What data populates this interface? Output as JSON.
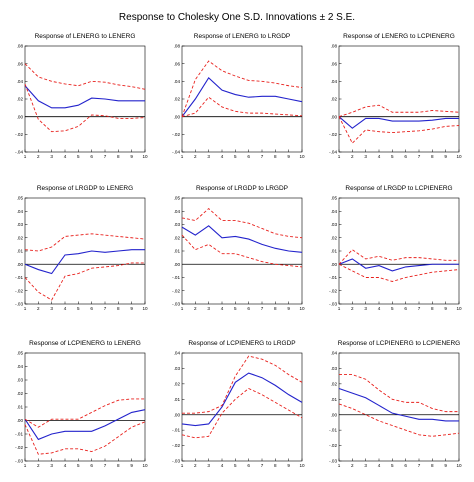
{
  "title": "Response to Cholesky One S.D. Innovations ± 2 S.E.",
  "colors": {
    "response": "#2323cc",
    "band": "#e8201c",
    "zero": "#000000",
    "frame": "#000000"
  },
  "chart_data": [
    {
      "type": "line",
      "title": "Response of LENERG to LENERG",
      "x": [
        1,
        2,
        3,
        4,
        5,
        6,
        7,
        8,
        9,
        10
      ],
      "ylim": [
        -0.04,
        0.08
      ],
      "y_ticks": [
        "-.04",
        "-.02",
        ".00",
        ".02",
        ".04",
        ".06",
        ".08"
      ],
      "series": [
        {
          "role": "response",
          "values": [
            0.035,
            0.018,
            0.01,
            0.01,
            0.013,
            0.021,
            0.02,
            0.018,
            0.018,
            0.018
          ]
        },
        {
          "role": "upper",
          "values": [
            0.06,
            0.045,
            0.04,
            0.037,
            0.035,
            0.04,
            0.039,
            0.036,
            0.034,
            0.031
          ]
        },
        {
          "role": "lower",
          "values": [
            0.037,
            -0.003,
            -0.017,
            -0.016,
            -0.011,
            0.002,
            0.001,
            -0.002,
            -0.002,
            -0.001
          ]
        }
      ]
    },
    {
      "type": "line",
      "title": "Response of LENERG to LRGDP",
      "x": [
        1,
        2,
        3,
        4,
        5,
        6,
        7,
        8,
        9,
        10
      ],
      "ylim": [
        -0.04,
        0.08
      ],
      "y_ticks": [
        "-.04",
        "-.02",
        ".00",
        ".02",
        ".04",
        ".06",
        ".08"
      ],
      "series": [
        {
          "role": "response",
          "values": [
            0.0,
            0.02,
            0.044,
            0.03,
            0.025,
            0.022,
            0.023,
            0.023,
            0.02,
            0.017
          ]
        },
        {
          "role": "upper",
          "values": [
            0.0,
            0.042,
            0.063,
            0.052,
            0.046,
            0.041,
            0.04,
            0.038,
            0.035,
            0.033
          ]
        },
        {
          "role": "lower",
          "values": [
            0.0,
            0.004,
            0.022,
            0.011,
            0.006,
            0.004,
            0.004,
            0.003,
            0.002,
            0.001
          ]
        }
      ]
    },
    {
      "type": "line",
      "title": "Response of LENERG to LCPIENERG",
      "x": [
        1,
        2,
        3,
        4,
        5,
        6,
        7,
        8,
        9,
        10
      ],
      "ylim": [
        -0.04,
        0.08
      ],
      "y_ticks": [
        "-.04",
        "-.02",
        ".00",
        ".02",
        ".04",
        ".06",
        ".08"
      ],
      "series": [
        {
          "role": "response",
          "values": [
            0.0,
            -0.013,
            -0.002,
            -0.002,
            -0.005,
            -0.005,
            -0.005,
            -0.004,
            -0.002,
            -0.002
          ]
        },
        {
          "role": "upper",
          "values": [
            0.0,
            0.005,
            0.011,
            0.013,
            0.005,
            0.005,
            0.005,
            0.007,
            0.006,
            0.005
          ]
        },
        {
          "role": "lower",
          "values": [
            0.0,
            -0.03,
            -0.015,
            -0.017,
            -0.018,
            -0.017,
            -0.016,
            -0.014,
            -0.011,
            -0.01
          ]
        }
      ]
    },
    {
      "type": "line",
      "title": "Response of LRGDP to LENERG",
      "x": [
        1,
        2,
        3,
        4,
        5,
        6,
        7,
        8,
        9,
        10
      ],
      "ylim": [
        -0.03,
        0.05
      ],
      "y_ticks": [
        "-.03",
        "-.02",
        "-.01",
        ".00",
        ".01",
        ".02",
        ".03",
        ".04",
        ".05"
      ],
      "series": [
        {
          "role": "response",
          "values": [
            0.0,
            -0.004,
            -0.007,
            0.007,
            0.008,
            0.01,
            0.009,
            0.01,
            0.011,
            0.011
          ]
        },
        {
          "role": "upper",
          "values": [
            0.011,
            0.01,
            0.013,
            0.021,
            0.022,
            0.023,
            0.022,
            0.021,
            0.02,
            0.019
          ]
        },
        {
          "role": "lower",
          "values": [
            -0.01,
            -0.021,
            -0.027,
            -0.009,
            -0.007,
            -0.003,
            -0.002,
            -0.001,
            0.001,
            0.001
          ]
        }
      ]
    },
    {
      "type": "line",
      "title": "Response of LRGDP to LRGDP",
      "x": [
        1,
        2,
        3,
        4,
        5,
        6,
        7,
        8,
        9,
        10
      ],
      "ylim": [
        -0.03,
        0.05
      ],
      "y_ticks": [
        "-.03",
        "-.02",
        "-.01",
        ".00",
        ".01",
        ".02",
        ".03",
        ".04",
        ".05"
      ],
      "series": [
        {
          "role": "response",
          "values": [
            0.028,
            0.022,
            0.029,
            0.02,
            0.021,
            0.019,
            0.015,
            0.012,
            0.01,
            0.009
          ]
        },
        {
          "role": "upper",
          "values": [
            0.035,
            0.033,
            0.042,
            0.033,
            0.033,
            0.031,
            0.027,
            0.023,
            0.021,
            0.02
          ]
        },
        {
          "role": "lower",
          "values": [
            0.022,
            0.011,
            0.015,
            0.008,
            0.008,
            0.005,
            0.002,
            0.0,
            -0.001,
            -0.002
          ]
        }
      ]
    },
    {
      "type": "line",
      "title": "Response of LRGDP to LCPIENERG",
      "x": [
        1,
        2,
        3,
        4,
        5,
        6,
        7,
        8,
        9,
        10
      ],
      "ylim": [
        -0.03,
        0.05
      ],
      "y_ticks": [
        "-.03",
        "-.02",
        "-.01",
        ".00",
        ".01",
        ".02",
        ".03",
        ".04",
        ".05"
      ],
      "series": [
        {
          "role": "response",
          "values": [
            0.0,
            0.004,
            -0.003,
            -0.001,
            -0.005,
            -0.002,
            -0.001,
            0.0,
            0.0,
            0.0
          ]
        },
        {
          "role": "upper",
          "values": [
            0.0,
            0.011,
            0.004,
            0.006,
            0.003,
            0.005,
            0.005,
            0.004,
            0.003,
            0.003
          ]
        },
        {
          "role": "lower",
          "values": [
            0.0,
            -0.005,
            -0.01,
            -0.01,
            -0.013,
            -0.01,
            -0.008,
            -0.006,
            -0.005,
            -0.004
          ]
        }
      ]
    },
    {
      "type": "line",
      "title": "Response of LCPIENERG to LENERG",
      "x": [
        1,
        2,
        3,
        4,
        5,
        6,
        7,
        8,
        9,
        10
      ],
      "ylim": [
        -0.03,
        0.05
      ],
      "y_ticks": [
        "-.03",
        "-.02",
        "-.01",
        ".00",
        ".01",
        ".02",
        ".03",
        ".04",
        ".05"
      ],
      "series": [
        {
          "role": "response",
          "values": [
            0.001,
            -0.014,
            -0.01,
            -0.008,
            -0.008,
            -0.008,
            -0.004,
            0.001,
            0.006,
            0.008
          ]
        },
        {
          "role": "upper",
          "values": [
            0.001,
            -0.005,
            0.001,
            0.001,
            0.001,
            0.006,
            0.011,
            0.015,
            0.016,
            0.016
          ]
        },
        {
          "role": "lower",
          "values": [
            -0.003,
            -0.025,
            -0.024,
            -0.021,
            -0.021,
            -0.023,
            -0.019,
            -0.012,
            -0.005,
            -0.001
          ]
        }
      ]
    },
    {
      "type": "line",
      "title": "Response of LCPIENERG to LRGDP",
      "x": [
        1,
        2,
        3,
        4,
        5,
        6,
        7,
        8,
        9,
        10
      ],
      "ylim": [
        -0.03,
        0.04
      ],
      "y_ticks": [
        "-.03",
        "-.02",
        "-.01",
        ".00",
        ".01",
        ".02",
        ".03",
        ".04"
      ],
      "series": [
        {
          "role": "response",
          "values": [
            -0.006,
            -0.007,
            -0.006,
            0.005,
            0.021,
            0.027,
            0.024,
            0.019,
            0.013,
            0.008
          ]
        },
        {
          "role": "upper",
          "values": [
            0.001,
            0.001,
            0.002,
            0.006,
            0.025,
            0.038,
            0.036,
            0.032,
            0.026,
            0.021
          ]
        },
        {
          "role": "lower",
          "values": [
            -0.013,
            -0.015,
            -0.014,
            0.001,
            0.01,
            0.017,
            0.013,
            0.008,
            0.003,
            -0.002
          ]
        }
      ]
    },
    {
      "type": "line",
      "title": "Response of LCPIENERG to LCPIENERG",
      "x": [
        1,
        2,
        3,
        4,
        5,
        6,
        7,
        8,
        9,
        10
      ],
      "ylim": [
        -0.03,
        0.04
      ],
      "y_ticks": [
        "-.03",
        "-.02",
        "-.01",
        ".00",
        ".01",
        ".02",
        ".03",
        ".04"
      ],
      "series": [
        {
          "role": "response",
          "values": [
            0.017,
            0.014,
            0.011,
            0.006,
            0.001,
            -0.001,
            -0.003,
            -0.003,
            -0.004,
            -0.004
          ]
        },
        {
          "role": "upper",
          "values": [
            0.026,
            0.026,
            0.023,
            0.016,
            0.01,
            0.008,
            0.008,
            0.004,
            0.002,
            0.002
          ]
        },
        {
          "role": "lower",
          "values": [
            0.007,
            0.004,
            0.0,
            -0.004,
            -0.007,
            -0.01,
            -0.013,
            -0.014,
            -0.013,
            -0.012
          ]
        }
      ]
    }
  ]
}
